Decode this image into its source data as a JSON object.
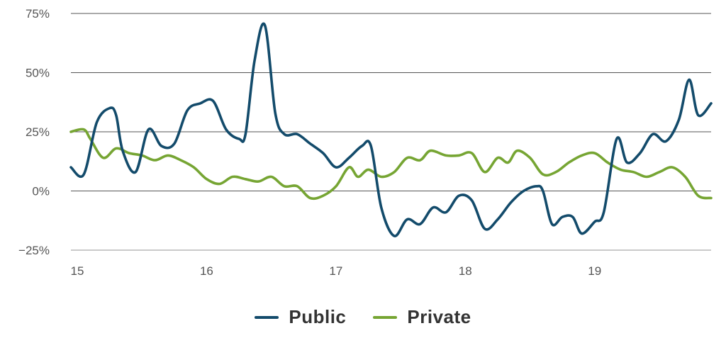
{
  "colors": {
    "public": "#134b6b",
    "private": "#76a533",
    "grid": "#555555",
    "baseline": "#aaaaaa"
  },
  "chart_data": {
    "type": "line",
    "x_ticks": [
      15,
      16,
      17,
      18,
      19
    ],
    "x_range": [
      15,
      19.95
    ],
    "y_ticks": [
      -25,
      0,
      25,
      50,
      75
    ],
    "y_tick_labels": [
      "−25%",
      "0%",
      "25%",
      "50%",
      "75%"
    ],
    "ylim": [
      -25,
      75
    ],
    "grid": "horizontal",
    "legend_position": "bottom-center",
    "series": [
      {
        "name": "Public",
        "color": "#134b6b",
        "points": [
          [
            15.0,
            10
          ],
          [
            15.1,
            7
          ],
          [
            15.2,
            29
          ],
          [
            15.3,
            35
          ],
          [
            15.35,
            32
          ],
          [
            15.4,
            17
          ],
          [
            15.5,
            8
          ],
          [
            15.6,
            26
          ],
          [
            15.7,
            19
          ],
          [
            15.8,
            20
          ],
          [
            15.9,
            34
          ],
          [
            16.0,
            37
          ],
          [
            16.1,
            38
          ],
          [
            16.2,
            26
          ],
          [
            16.3,
            22
          ],
          [
            16.35,
            24
          ],
          [
            16.42,
            55
          ],
          [
            16.5,
            70
          ],
          [
            16.58,
            33
          ],
          [
            16.65,
            24
          ],
          [
            16.75,
            24
          ],
          [
            16.85,
            20
          ],
          [
            16.95,
            16
          ],
          [
            17.05,
            10
          ],
          [
            17.15,
            14
          ],
          [
            17.25,
            19
          ],
          [
            17.32,
            19
          ],
          [
            17.4,
            -7
          ],
          [
            17.5,
            -19
          ],
          [
            17.6,
            -12
          ],
          [
            17.7,
            -14
          ],
          [
            17.8,
            -7
          ],
          [
            17.9,
            -9
          ],
          [
            18.0,
            -2
          ],
          [
            18.1,
            -4
          ],
          [
            18.2,
            -16
          ],
          [
            18.3,
            -12
          ],
          [
            18.4,
            -5
          ],
          [
            18.5,
            0
          ],
          [
            18.6,
            2
          ],
          [
            18.65,
            0
          ],
          [
            18.72,
            -14
          ],
          [
            18.8,
            -11
          ],
          [
            18.88,
            -11
          ],
          [
            18.95,
            -18
          ],
          [
            19.05,
            -13
          ],
          [
            19.12,
            -9
          ],
          [
            19.22,
            22
          ],
          [
            19.3,
            12
          ],
          [
            19.4,
            16
          ],
          [
            19.5,
            24
          ],
          [
            19.6,
            21
          ],
          [
            19.7,
            30
          ],
          [
            19.78,
            47
          ],
          [
            19.85,
            32
          ],
          [
            19.95,
            37
          ]
        ]
      },
      {
        "name": "Private",
        "color": "#76a533",
        "points": [
          [
            15.0,
            25
          ],
          [
            15.1,
            26
          ],
          [
            15.15,
            22
          ],
          [
            15.25,
            14
          ],
          [
            15.35,
            18
          ],
          [
            15.45,
            16
          ],
          [
            15.55,
            15
          ],
          [
            15.65,
            13
          ],
          [
            15.75,
            15
          ],
          [
            15.85,
            13
          ],
          [
            15.95,
            10
          ],
          [
            16.05,
            5
          ],
          [
            16.15,
            3
          ],
          [
            16.25,
            6
          ],
          [
            16.35,
            5
          ],
          [
            16.45,
            4
          ],
          [
            16.55,
            6
          ],
          [
            16.65,
            2
          ],
          [
            16.75,
            2
          ],
          [
            16.85,
            -3
          ],
          [
            16.95,
            -2
          ],
          [
            17.05,
            2
          ],
          [
            17.15,
            10
          ],
          [
            17.22,
            6
          ],
          [
            17.3,
            9
          ],
          [
            17.4,
            6
          ],
          [
            17.5,
            8
          ],
          [
            17.6,
            14
          ],
          [
            17.7,
            13
          ],
          [
            17.78,
            17
          ],
          [
            17.9,
            15
          ],
          [
            18.0,
            15
          ],
          [
            18.1,
            16
          ],
          [
            18.2,
            8
          ],
          [
            18.3,
            14
          ],
          [
            18.38,
            12
          ],
          [
            18.45,
            17
          ],
          [
            18.55,
            14
          ],
          [
            18.65,
            7
          ],
          [
            18.75,
            8
          ],
          [
            18.85,
            12
          ],
          [
            18.95,
            15
          ],
          [
            19.05,
            16
          ],
          [
            19.15,
            12
          ],
          [
            19.25,
            9
          ],
          [
            19.35,
            8
          ],
          [
            19.45,
            6
          ],
          [
            19.55,
            8
          ],
          [
            19.65,
            10
          ],
          [
            19.75,
            6
          ],
          [
            19.85,
            -2
          ],
          [
            19.95,
            -3
          ]
        ]
      }
    ]
  },
  "legend": [
    {
      "label": "Public",
      "color": "#134b6b"
    },
    {
      "label": "Private",
      "color": "#76a533"
    }
  ]
}
